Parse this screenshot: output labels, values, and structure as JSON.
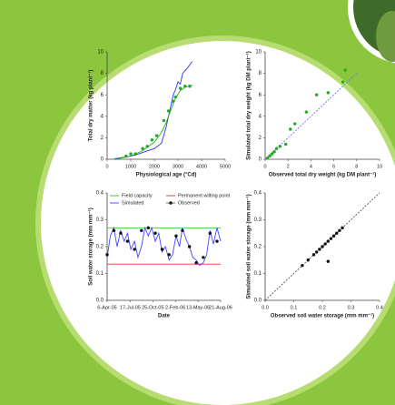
{
  "chart_data": [
    {
      "type": "line",
      "ylabel": "Total dry matter (kg plant⁻¹)",
      "xlabel": "Physiological age (°Cd)",
      "xlim": [
        0,
        5000
      ],
      "xticks": [
        0,
        1000,
        2000,
        3000,
        4000,
        5000
      ],
      "ylim": [
        0,
        10
      ],
      "yticks": [
        0,
        2,
        4,
        6,
        8,
        10
      ],
      "series": [
        {
          "color": "#3333ff",
          "mark": "line",
          "x": [
            300,
            800,
            1200,
            1600,
            2000,
            2300,
            2500,
            2650,
            2800,
            2900,
            3000,
            3100,
            3200,
            3400,
            3600
          ],
          "values": [
            0,
            0.2,
            0.4,
            0.7,
            1.0,
            1.5,
            3.0,
            4.5,
            6.0,
            6.5,
            7.2,
            7.0,
            8.0,
            8.5,
            9.1
          ]
        },
        {
          "color": "#22aa22",
          "mark": "line",
          "x": [
            300,
            1000,
            1500,
            2000,
            2300,
            2500,
            2700,
            2900,
            3100,
            3300,
            3600
          ],
          "values": [
            0.05,
            0.3,
            0.8,
            1.6,
            2.5,
            3.4,
            4.6,
            5.7,
            6.4,
            6.7,
            6.9
          ]
        },
        {
          "color": "#22aa22",
          "mark": "point",
          "x": [
            800,
            1000,
            1200,
            1500,
            1700,
            1900,
            2100,
            2400,
            2600,
            2800,
            2900,
            3100,
            3300,
            3500
          ],
          "values": [
            0.3,
            0.5,
            0.5,
            1.0,
            1.2,
            1.8,
            2.2,
            3.6,
            4.5,
            5.4,
            5.8,
            6.6,
            6.8,
            6.8
          ]
        }
      ]
    },
    {
      "type": "scatter",
      "ylabel": "Simulated total dry weight (kg DM plant⁻¹)",
      "xlabel": "Observed total dry weight (kg DM plant⁻¹)",
      "xlim": [
        0,
        10
      ],
      "xticks": [
        0,
        2,
        4,
        6,
        8,
        10
      ],
      "ylim": [
        0,
        10
      ],
      "yticks": [
        0,
        2,
        4,
        6,
        8,
        10
      ],
      "series": [
        {
          "color": "#6677ee",
          "mark": "line",
          "dash": true,
          "x": [
            0,
            8
          ],
          "values": [
            0,
            8
          ]
        },
        {
          "color": "#22aa22",
          "mark": "point",
          "x": [
            0.2,
            0.4,
            0.6,
            0.8,
            1,
            1.3,
            1.8,
            2.2,
            2.6,
            3.6,
            4.5,
            5.5,
            6.8,
            7
          ],
          "values": [
            0.1,
            0.3,
            0.5,
            0.7,
            1,
            1.2,
            1.4,
            2.8,
            3.3,
            4.4,
            6,
            6.2,
            7.2,
            8.3
          ]
        }
      ]
    },
    {
      "type": "line",
      "ylabel": "Soil water storage (mm mm⁻¹)",
      "xlabel": "Date",
      "xlim": [
        "2005-04-06",
        "2006-08-21"
      ],
      "xticks": [
        {
          "value": "2005-04-06",
          "label": "6-Apr-05"
        },
        {
          "value": "2005-07-17",
          "label": "17-Jul-05"
        },
        {
          "value": "2005-10-25",
          "label": "25-Oct-05"
        },
        {
          "value": "2006-02-02",
          "label": "2-Feb-06"
        },
        {
          "value": "2006-05-13",
          "label": "13-May-06"
        },
        {
          "value": "2006-08-21",
          "label": "21-Aug-06"
        }
      ],
      "ylim": [
        0,
        0.4
      ],
      "yticks": [
        {
          "value": 0,
          "label": "0.0"
        },
        0.1,
        0.2,
        0.3,
        0.4
      ],
      "hlines": [
        {
          "name": "Field capacity",
          "color": "#33bb33",
          "value": 0.27
        },
        {
          "name": "Permanent wilting point",
          "color": "#dd3333",
          "value": 0.135
        }
      ],
      "series": [
        {
          "name": "Simulated",
          "color": "#4444ff",
          "mark": "line",
          "x": [
            "2005-04-06",
            "2005-04-20",
            "2005-05-05",
            "2005-05-20",
            "2005-06-05",
            "2005-06-20",
            "2005-07-05",
            "2005-07-20",
            "2005-08-05",
            "2005-08-20",
            "2005-09-05",
            "2005-09-20",
            "2005-10-05",
            "2005-10-20",
            "2005-11-05",
            "2005-11-20",
            "2005-12-05",
            "2005-12-20",
            "2006-01-05",
            "2006-01-20",
            "2006-02-05",
            "2006-02-20",
            "2006-03-05",
            "2006-03-20",
            "2006-04-05",
            "2006-04-20",
            "2006-05-05",
            "2006-05-20",
            "2006-06-05",
            "2006-06-20",
            "2006-07-05",
            "2006-07-20",
            "2006-08-05",
            "2006-08-21"
          ],
          "values": [
            0.16,
            0.24,
            0.27,
            0.2,
            0.26,
            0.22,
            0.25,
            0.19,
            0.22,
            0.16,
            0.2,
            0.27,
            0.24,
            0.27,
            0.22,
            0.25,
            0.18,
            0.2,
            0.15,
            0.17,
            0.24,
            0.2,
            0.27,
            0.23,
            0.2,
            0.16,
            0.15,
            0.13,
            0.14,
            0.17,
            0.26,
            0.21,
            0.27,
            0.22
          ]
        },
        {
          "name": "Observed",
          "color": "#111111",
          "mark": "point",
          "x": [
            "2005-04-06",
            "2005-05-06",
            "2005-06-05",
            "2005-07-05",
            "2005-08-05",
            "2005-09-05",
            "2005-10-05",
            "2005-11-05",
            "2005-12-05",
            "2006-01-05",
            "2006-02-05",
            "2006-03-05",
            "2006-04-05",
            "2006-05-05",
            "2006-06-05",
            "2006-07-05",
            "2006-08-05"
          ],
          "values": [
            0.17,
            0.26,
            0.25,
            0.22,
            0.19,
            0.26,
            0.27,
            0.25,
            0.19,
            0.17,
            0.24,
            0.26,
            0.2,
            0.14,
            0.16,
            0.25,
            0.22
          ]
        }
      ]
    },
    {
      "type": "scatter",
      "ylabel": "Simulated soil water storage (mm mm⁻¹)",
      "xlabel": "Observed soil water storage (mm mm⁻¹)",
      "xlim": [
        0,
        0.4
      ],
      "xticks": [
        {
          "value": 0,
          "label": "0.0"
        },
        0.1,
        0.2,
        0.3,
        0.4
      ],
      "ylim": [
        0,
        0.4
      ],
      "yticks": [
        {
          "value": 0,
          "label": "0.0"
        },
        0.1,
        0.2,
        0.3,
        0.4
      ],
      "series": [
        {
          "color": "#555555",
          "mark": "line",
          "dash": true,
          "x": [
            0,
            0.4
          ],
          "values": [
            0,
            0.4
          ]
        },
        {
          "color": "#111111",
          "mark": "point",
          "x": [
            0.13,
            0.15,
            0.17,
            0.18,
            0.19,
            0.2,
            0.21,
            0.22,
            0.23,
            0.24,
            0.25,
            0.26,
            0.27,
            0.22
          ],
          "values": [
            0.13,
            0.15,
            0.17,
            0.18,
            0.19,
            0.2,
            0.21,
            0.22,
            0.23,
            0.24,
            0.25,
            0.26,
            0.27,
            0.145
          ]
        }
      ]
    }
  ]
}
